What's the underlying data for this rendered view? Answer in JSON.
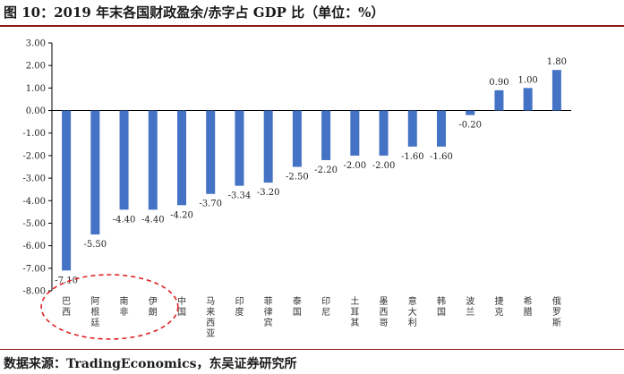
{
  "header": {
    "title": "图 10：2019 年末各国财政盈余/赤字占 GDP 比（单位：%）"
  },
  "footer": {
    "source": "数据来源：TradingEconomics，东吴证券研究所"
  },
  "chart_data": {
    "type": "bar",
    "title": "2019 年末各国财政盈余/赤字占 GDP 比（单位：%）",
    "xlabel": "",
    "ylabel": "",
    "ylim": [
      -8.0,
      3.0
    ],
    "ytick_step": 1.0,
    "yticks": [
      "3.00",
      "2.00",
      "1.00",
      "0.00",
      "-1.00",
      "-2.00",
      "-3.00",
      "-4.00",
      "-5.00",
      "-6.00",
      "-7.00",
      "-8.00"
    ],
    "grid": false,
    "categories": [
      "巴西",
      "阿根廷",
      "南非",
      "伊朗",
      "中国",
      "马来西亚",
      "印度",
      "菲律宾",
      "泰国",
      "印尼",
      "土耳其",
      "墨西哥",
      "意大利",
      "韩国",
      "波兰",
      "捷克",
      "希腊",
      "俄罗斯"
    ],
    "values": [
      -7.1,
      -5.5,
      -4.4,
      -4.4,
      -4.2,
      -3.7,
      -3.34,
      -3.2,
      -2.5,
      -2.2,
      -2.0,
      -2.0,
      -1.6,
      -1.6,
      -0.2,
      0.9,
      1.0,
      1.8
    ],
    "value_labels": [
      "-7.10",
      "-5.50",
      "-4.40",
      "-4.40",
      "-4.20",
      "-3.70",
      "-3.34",
      "-3.20",
      "-2.50",
      "-2.20",
      "-2.00",
      "-2.00",
      "-1.60",
      "-1.60",
      "-0.20",
      "0.90",
      "1.00",
      "1.80"
    ],
    "bar_color": "#4472c4",
    "highlight": {
      "shape": "dashed-ellipse",
      "color": "#e02020",
      "categories": [
        "巴西",
        "阿根廷",
        "南非",
        "伊朗"
      ]
    }
  }
}
